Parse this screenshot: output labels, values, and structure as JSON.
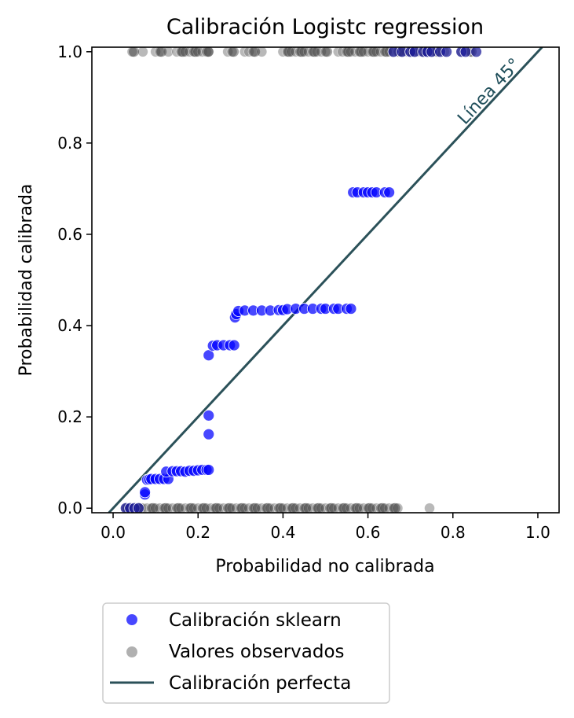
{
  "chart_data": {
    "type": "scatter",
    "title": "Calibración Logistc regression",
    "xlabel": "Probabilidad no calibrada",
    "ylabel": "Probabilidad calibrada",
    "xlim": [
      -0.05,
      1.05
    ],
    "ylim": [
      -0.01,
      1.01
    ],
    "xticks": [
      "0.0",
      "0.2",
      "0.4",
      "0.6",
      "0.8",
      "1.0"
    ],
    "yticks": [
      "0.0",
      "0.2",
      "0.4",
      "0.6",
      "0.8",
      "1.0"
    ],
    "grid": false,
    "legend_position": "below",
    "annotation": {
      "text": "Línea 45°",
      "color": "#1f4e5a"
    },
    "series": [
      {
        "name": "Calibración sklearn",
        "kind": "scatter",
        "color": "#0000ff",
        "points": [
          [
            0.03,
            0.0
          ],
          [
            0.04,
            0.0
          ],
          [
            0.05,
            0.0
          ],
          [
            0.06,
            0.0
          ],
          [
            0.075,
            0.03
          ],
          [
            0.075,
            0.035
          ],
          [
            0.08,
            0.062
          ],
          [
            0.085,
            0.063
          ],
          [
            0.09,
            0.064
          ],
          [
            0.1,
            0.064
          ],
          [
            0.11,
            0.064
          ],
          [
            0.12,
            0.064
          ],
          [
            0.13,
            0.064
          ],
          [
            0.125,
            0.08
          ],
          [
            0.14,
            0.081
          ],
          [
            0.15,
            0.081
          ],
          [
            0.16,
            0.081
          ],
          [
            0.17,
            0.08
          ],
          [
            0.18,
            0.082
          ],
          [
            0.19,
            0.082
          ],
          [
            0.2,
            0.083
          ],
          [
            0.21,
            0.084
          ],
          [
            0.22,
            0.084
          ],
          [
            0.225,
            0.084
          ],
          [
            0.225,
            0.162
          ],
          [
            0.225,
            0.203
          ],
          [
            0.225,
            0.335
          ],
          [
            0.235,
            0.356
          ],
          [
            0.245,
            0.357
          ],
          [
            0.26,
            0.357
          ],
          [
            0.275,
            0.357
          ],
          [
            0.285,
            0.357
          ],
          [
            0.287,
            0.418
          ],
          [
            0.29,
            0.425
          ],
          [
            0.295,
            0.432
          ],
          [
            0.31,
            0.433
          ],
          [
            0.33,
            0.433
          ],
          [
            0.35,
            0.433
          ],
          [
            0.37,
            0.433
          ],
          [
            0.39,
            0.434
          ],
          [
            0.4,
            0.434
          ],
          [
            0.41,
            0.436
          ],
          [
            0.43,
            0.437
          ],
          [
            0.45,
            0.437
          ],
          [
            0.47,
            0.437
          ],
          [
            0.49,
            0.437
          ],
          [
            0.5,
            0.437
          ],
          [
            0.52,
            0.437
          ],
          [
            0.53,
            0.437
          ],
          [
            0.55,
            0.437
          ],
          [
            0.56,
            0.437
          ],
          [
            0.565,
            0.692
          ],
          [
            0.575,
            0.692
          ],
          [
            0.59,
            0.692
          ],
          [
            0.6,
            0.692
          ],
          [
            0.61,
            0.692
          ],
          [
            0.62,
            0.692
          ],
          [
            0.64,
            0.692
          ],
          [
            0.65,
            0.692
          ],
          [
            0.66,
            1.0
          ],
          [
            0.68,
            1.0
          ],
          [
            0.7,
            1.0
          ],
          [
            0.71,
            1.0
          ],
          [
            0.73,
            1.0
          ],
          [
            0.74,
            1.0
          ],
          [
            0.75,
            1.0
          ],
          [
            0.77,
            1.0
          ],
          [
            0.785,
            1.0
          ],
          [
            0.82,
            1.0
          ],
          [
            0.83,
            1.0
          ],
          [
            0.855,
            1.0
          ]
        ]
      },
      {
        "name": "Valores observados",
        "kind": "scatter",
        "color": "#808080",
        "points": [
          [
            0.03,
            0.0
          ],
          [
            0.04,
            0.0
          ],
          [
            0.05,
            0.0
          ],
          [
            0.06,
            0.0
          ],
          [
            0.07,
            0.0
          ],
          [
            0.08,
            0.0
          ],
          [
            0.09,
            0.0
          ],
          [
            0.1,
            0.0
          ],
          [
            0.11,
            0.0
          ],
          [
            0.12,
            0.0
          ],
          [
            0.13,
            0.0
          ],
          [
            0.14,
            0.0
          ],
          [
            0.15,
            0.0
          ],
          [
            0.16,
            0.0
          ],
          [
            0.17,
            0.0
          ],
          [
            0.18,
            0.0
          ],
          [
            0.19,
            0.0
          ],
          [
            0.2,
            0.0
          ],
          [
            0.21,
            0.0
          ],
          [
            0.22,
            0.0
          ],
          [
            0.23,
            0.0
          ],
          [
            0.24,
            0.0
          ],
          [
            0.25,
            0.0
          ],
          [
            0.26,
            0.0
          ],
          [
            0.27,
            0.0
          ],
          [
            0.28,
            0.0
          ],
          [
            0.29,
            0.0
          ],
          [
            0.3,
            0.0
          ],
          [
            0.31,
            0.0
          ],
          [
            0.32,
            0.0
          ],
          [
            0.33,
            0.0
          ],
          [
            0.34,
            0.0
          ],
          [
            0.35,
            0.0
          ],
          [
            0.36,
            0.0
          ],
          [
            0.37,
            0.0
          ],
          [
            0.38,
            0.0
          ],
          [
            0.39,
            0.0
          ],
          [
            0.4,
            0.0
          ],
          [
            0.41,
            0.0
          ],
          [
            0.42,
            0.0
          ],
          [
            0.43,
            0.0
          ],
          [
            0.44,
            0.0
          ],
          [
            0.45,
            0.0
          ],
          [
            0.46,
            0.0
          ],
          [
            0.47,
            0.0
          ],
          [
            0.48,
            0.0
          ],
          [
            0.49,
            0.0
          ],
          [
            0.5,
            0.0
          ],
          [
            0.51,
            0.0
          ],
          [
            0.52,
            0.0
          ],
          [
            0.53,
            0.0
          ],
          [
            0.54,
            0.0
          ],
          [
            0.55,
            0.0
          ],
          [
            0.56,
            0.0
          ],
          [
            0.57,
            0.0
          ],
          [
            0.58,
            0.0
          ],
          [
            0.59,
            0.0
          ],
          [
            0.6,
            0.0
          ],
          [
            0.61,
            0.0
          ],
          [
            0.62,
            0.0
          ],
          [
            0.63,
            0.0
          ],
          [
            0.64,
            0.0
          ],
          [
            0.65,
            0.0
          ],
          [
            0.66,
            0.0
          ],
          [
            0.67,
            0.0
          ],
          [
            0.745,
            0.0
          ],
          [
            0.045,
            1.0
          ],
          [
            0.07,
            1.0
          ],
          [
            0.1,
            1.0
          ],
          [
            0.11,
            1.0
          ],
          [
            0.13,
            1.0
          ],
          [
            0.15,
            1.0
          ],
          [
            0.16,
            1.0
          ],
          [
            0.17,
            1.0
          ],
          [
            0.18,
            1.0
          ],
          [
            0.19,
            1.0
          ],
          [
            0.2,
            1.0
          ],
          [
            0.21,
            1.0
          ],
          [
            0.22,
            1.0
          ],
          [
            0.225,
            1.0
          ],
          [
            0.27,
            1.0
          ],
          [
            0.28,
            1.0
          ],
          [
            0.31,
            1.0
          ],
          [
            0.32,
            1.0
          ],
          [
            0.33,
            1.0
          ],
          [
            0.35,
            1.0
          ],
          [
            0.4,
            1.0
          ],
          [
            0.41,
            1.0
          ],
          [
            0.42,
            1.0
          ],
          [
            0.43,
            1.0
          ],
          [
            0.44,
            1.0
          ],
          [
            0.45,
            1.0
          ],
          [
            0.46,
            1.0
          ],
          [
            0.47,
            1.0
          ],
          [
            0.48,
            1.0
          ],
          [
            0.49,
            1.0
          ],
          [
            0.5,
            1.0
          ],
          [
            0.53,
            1.0
          ],
          [
            0.54,
            1.0
          ],
          [
            0.55,
            1.0
          ],
          [
            0.56,
            1.0
          ],
          [
            0.57,
            1.0
          ],
          [
            0.58,
            1.0
          ],
          [
            0.59,
            1.0
          ],
          [
            0.6,
            1.0
          ],
          [
            0.61,
            1.0
          ],
          [
            0.62,
            1.0
          ],
          [
            0.63,
            1.0
          ],
          [
            0.64,
            1.0
          ],
          [
            0.65,
            1.0
          ],
          [
            0.66,
            1.0
          ],
          [
            0.67,
            1.0
          ],
          [
            0.68,
            1.0
          ],
          [
            0.69,
            1.0
          ],
          [
            0.7,
            1.0
          ],
          [
            0.71,
            1.0
          ],
          [
            0.72,
            1.0
          ],
          [
            0.73,
            1.0
          ],
          [
            0.74,
            1.0
          ],
          [
            0.75,
            1.0
          ],
          [
            0.76,
            1.0
          ],
          [
            0.78,
            1.0
          ],
          [
            0.82,
            1.0
          ],
          [
            0.84,
            1.0
          ]
        ]
      },
      {
        "name": "Calibración perfecta",
        "kind": "line",
        "color": "#2b5159",
        "x": [
          -0.01,
          1.01
        ],
        "y": [
          -0.01,
          1.01
        ]
      }
    ]
  }
}
